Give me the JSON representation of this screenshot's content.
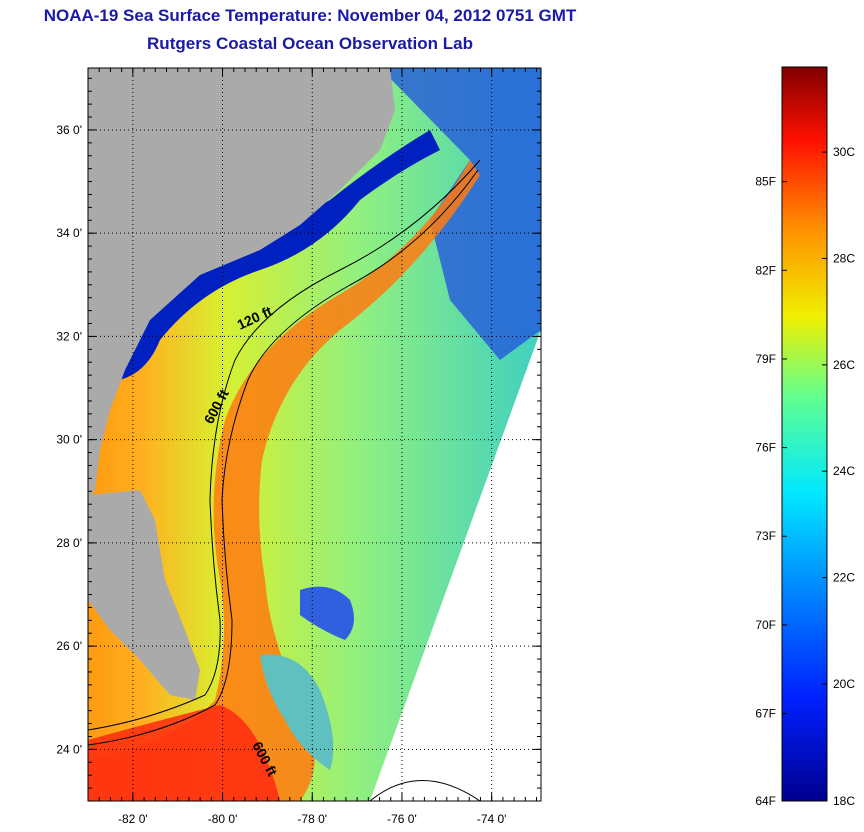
{
  "header": {
    "title": "NOAA-19 Sea Surface Temperature:  November 04, 2012 0751 GMT",
    "subtitle": "Rutgers Coastal Ocean Observation Lab"
  },
  "map": {
    "lat_ticks": [
      {
        "value": 24,
        "label": "24 0'"
      },
      {
        "value": 26,
        "label": "26 0'"
      },
      {
        "value": 28,
        "label": "28 0'"
      },
      {
        "value": 30,
        "label": "30 0'"
      },
      {
        "value": 32,
        "label": "32 0'"
      },
      {
        "value": 34,
        "label": "34 0'"
      },
      {
        "value": 36,
        "label": "36 0'"
      }
    ],
    "lon_ticks": [
      {
        "value": -82,
        "label": "-82 0'"
      },
      {
        "value": -80,
        "label": "-80 0'"
      },
      {
        "value": -78,
        "label": "-78 0'"
      },
      {
        "value": -76,
        "label": "-76 0'"
      },
      {
        "value": -74,
        "label": "-74 0'"
      }
    ],
    "lat_range": [
      23.0,
      37.2
    ],
    "lon_range": [
      -83.0,
      -72.9
    ],
    "contour_labels": {
      "c120": "120 ft",
      "c600a": "600 ft",
      "c600b": "600 ft"
    }
  },
  "colorbar": {
    "f_labels": [
      "85F",
      "82F",
      "79F",
      "76F",
      "73F",
      "70F",
      "67F",
      "64F"
    ],
    "c_labels": [
      "30C",
      "28C",
      "26C",
      "24C",
      "22C",
      "20C",
      "18C"
    ],
    "colors": {
      "min": "#00008f",
      "blue": "#0050ff",
      "cyan": "#00e0ff",
      "yellow": "#f0f000",
      "orange": "#ff8000",
      "red": "#ff1000",
      "max": "#800000"
    }
  }
}
